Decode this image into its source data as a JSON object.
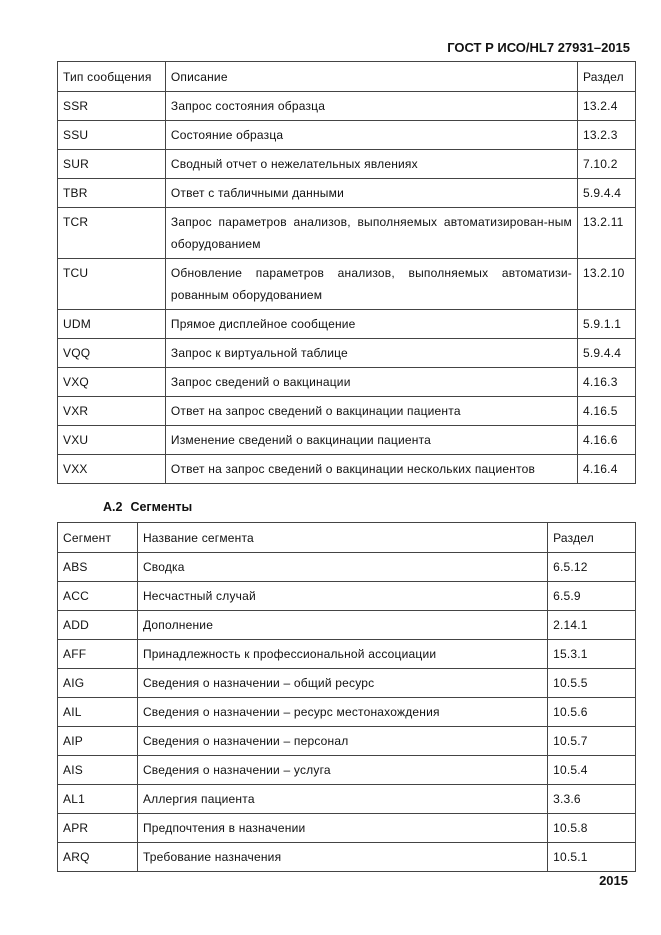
{
  "header": {
    "title": "ГОСТ Р ИСО/HL7 27931–2015"
  },
  "table1": {
    "headers": [
      "Тип сообщения",
      "Описание",
      "Раздел"
    ],
    "rows": [
      [
        "SSR",
        "Запрос состояния образца",
        "13.2.4"
      ],
      [
        "SSU",
        "Состояние образца",
        "13.2.3"
      ],
      [
        "SUR",
        "Сводный отчет о нежелательных явлениях",
        "7.10.2"
      ],
      [
        "TBR",
        "Ответ с табличными данными",
        "5.9.4.4"
      ],
      [
        "TCR",
        "Запрос параметров анализов, выполняемых автоматизирован-ным оборудованием",
        "13.2.11"
      ],
      [
        "TCU",
        "Обновление параметров анализов, выполняемых автоматизи-рованным оборудованием",
        "13.2.10"
      ],
      [
        "UDM",
        "Прямое дисплейное сообщение",
        "5.9.1.1"
      ],
      [
        "VQQ",
        "Запрос к виртуальной таблице",
        "5.9.4.4"
      ],
      [
        "VXQ",
        "Запрос сведений о вакцинации",
        "4.16.3"
      ],
      [
        "VXR",
        "Ответ на запрос сведений о вакцинации пациента",
        "4.16.5"
      ],
      [
        "VXU",
        "Изменение сведений о вакцинации пациента",
        "4.16.6"
      ],
      [
        "VXX",
        "Ответ на запрос сведений о вакцинации нескольких пациентов",
        "4.16.4"
      ]
    ]
  },
  "section": {
    "number": "А.2",
    "title": "Сегменты"
  },
  "table2": {
    "headers": [
      "Сегмент",
      "Название сегмента",
      "Раздел"
    ],
    "rows": [
      [
        "ABS",
        "Сводка",
        "6.5.12"
      ],
      [
        "ACC",
        "Несчастный случай",
        "6.5.9"
      ],
      [
        "ADD",
        "Дополнение",
        "2.14.1"
      ],
      [
        "AFF",
        "Принадлежность к профессиональной ассоциации",
        "15.3.1"
      ],
      [
        "AIG",
        "Сведения о назначении – общий ресурс",
        "10.5.5"
      ],
      [
        "AIL",
        "Сведения о назначении – ресурс местонахождения",
        "10.5.6"
      ],
      [
        "AIP",
        "Сведения о назначении – персонал",
        "10.5.7"
      ],
      [
        "AIS",
        "Сведения о назначении – услуга",
        "10.5.4"
      ],
      [
        "AL1",
        "Аллергия пациента",
        "3.3.6"
      ],
      [
        "APR",
        "Предпочтения в назначении",
        "10.5.8"
      ],
      [
        "ARQ",
        "Требование назначения",
        "10.5.1"
      ]
    ]
  },
  "footer": {
    "page": "2015"
  }
}
